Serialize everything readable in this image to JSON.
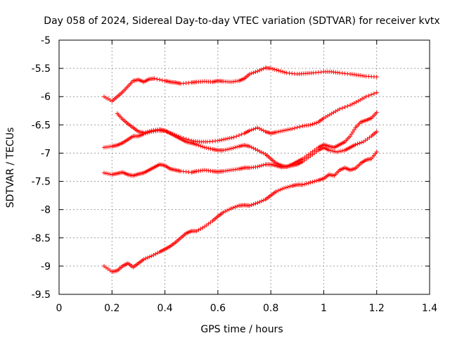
{
  "chart_data": {
    "type": "scatter",
    "title": "Day 058 of 2024, Sidereal Day-to-day VTEC variation (SDTVAR) for receiver kvtx",
    "xlabel": "GPS time / hours",
    "ylabel": "SDTVAR / TECUs",
    "xlim": [
      0,
      1.4
    ],
    "ylim": [
      -9.5,
      -5
    ],
    "xticks": [
      "0",
      "0.2",
      "0.4",
      "0.6",
      "0.8",
      "1",
      "1.2",
      "1.4"
    ],
    "yticks": [
      "-5",
      "-5.5",
      "-6",
      "-6.5",
      "-7",
      "-7.5",
      "-8",
      "-8.5",
      "-9",
      "-9.5"
    ],
    "grid": true,
    "marker": "+",
    "marker_color": "#ff0000",
    "series": [
      {
        "x": [
          0.17,
          0.2,
          0.22,
          0.24,
          0.26,
          0.28,
          0.3,
          0.32,
          0.34,
          0.36,
          0.4,
          0.42,
          0.44,
          0.46,
          0.5,
          0.52,
          0.55,
          0.58,
          0.6,
          0.62,
          0.65,
          0.68,
          0.7,
          0.72,
          0.75,
          0.78,
          0.8,
          0.83,
          0.86,
          0.9,
          0.93,
          0.96,
          1.0,
          1.03,
          1.06,
          1.1,
          1.13,
          1.16,
          1.2
        ],
        "y": [
          -6.0,
          -6.08,
          -6.0,
          -5.92,
          -5.82,
          -5.72,
          -5.7,
          -5.74,
          -5.69,
          -5.68,
          -5.72,
          -5.74,
          -5.75,
          -5.77,
          -5.75,
          -5.74,
          -5.73,
          -5.74,
          -5.72,
          -5.73,
          -5.74,
          -5.72,
          -5.68,
          -5.6,
          -5.55,
          -5.49,
          -5.5,
          -5.54,
          -5.58,
          -5.6,
          -5.59,
          -5.58,
          -5.56,
          -5.56,
          -5.58,
          -5.6,
          -5.62,
          -5.64,
          -5.65
        ]
      },
      {
        "x": [
          0.22,
          0.24,
          0.26,
          0.28,
          0.3,
          0.32,
          0.35,
          0.38,
          0.4,
          0.42,
          0.44,
          0.46,
          0.48,
          0.5,
          0.52,
          0.55,
          0.58,
          0.6,
          0.62,
          0.65,
          0.68,
          0.7,
          0.72,
          0.75,
          0.78,
          0.8,
          0.82,
          0.84,
          0.86,
          0.88,
          0.9,
          0.92,
          0.95,
          0.98,
          1.0,
          1.02,
          1.05,
          1.08,
          1.1,
          1.12,
          1.15,
          1.18,
          1.2
        ],
        "y": [
          -6.3,
          -6.4,
          -6.48,
          -6.55,
          -6.62,
          -6.64,
          -6.6,
          -6.58,
          -6.6,
          -6.65,
          -6.7,
          -6.75,
          -6.8,
          -6.82,
          -6.85,
          -6.9,
          -6.93,
          -6.95,
          -6.95,
          -6.92,
          -6.88,
          -6.86,
          -6.88,
          -6.95,
          -7.02,
          -7.1,
          -7.18,
          -7.22,
          -7.24,
          -7.22,
          -7.2,
          -7.15,
          -7.05,
          -6.95,
          -6.9,
          -6.95,
          -6.98,
          -6.95,
          -6.9,
          -6.85,
          -6.8,
          -6.7,
          -6.62
        ]
      },
      {
        "x": [
          0.17,
          0.2,
          0.22,
          0.24,
          0.26,
          0.28,
          0.3,
          0.32,
          0.35,
          0.38,
          0.4,
          0.43,
          0.46,
          0.5,
          0.53,
          0.56,
          0.6,
          0.63,
          0.66,
          0.7,
          0.72,
          0.75,
          0.78,
          0.8,
          0.82,
          0.85,
          0.88,
          0.92,
          0.95,
          0.98,
          1.0,
          1.03,
          1.06,
          1.1,
          1.13,
          1.16,
          1.2
        ],
        "y": [
          -6.9,
          -6.88,
          -6.86,
          -6.82,
          -6.76,
          -6.7,
          -6.7,
          -6.66,
          -6.62,
          -6.6,
          -6.61,
          -6.66,
          -6.72,
          -6.78,
          -6.8,
          -6.8,
          -6.78,
          -6.75,
          -6.72,
          -6.65,
          -6.6,
          -6.55,
          -6.62,
          -6.65,
          -6.63,
          -6.6,
          -6.57,
          -6.52,
          -6.5,
          -6.45,
          -6.38,
          -6.3,
          -6.22,
          -6.15,
          -6.08,
          -6.0,
          -5.93
        ]
      },
      {
        "x": [
          0.17,
          0.2,
          0.22,
          0.24,
          0.26,
          0.28,
          0.3,
          0.32,
          0.34,
          0.36,
          0.38,
          0.4,
          0.42,
          0.44,
          0.46,
          0.5,
          0.52,
          0.55,
          0.58,
          0.6,
          0.62,
          0.65,
          0.68,
          0.7,
          0.72,
          0.75,
          0.78,
          0.8,
          0.82,
          0.84,
          0.86,
          0.88,
          0.9,
          0.92,
          0.95,
          0.98,
          1.0,
          1.02,
          1.04,
          1.06,
          1.08,
          1.1,
          1.12,
          1.14,
          1.16,
          1.18,
          1.2
        ],
        "y": [
          -7.35,
          -7.38,
          -7.36,
          -7.34,
          -7.38,
          -7.4,
          -7.37,
          -7.35,
          -7.3,
          -7.25,
          -7.2,
          -7.22,
          -7.28,
          -7.3,
          -7.32,
          -7.34,
          -7.32,
          -7.3,
          -7.32,
          -7.33,
          -7.32,
          -7.3,
          -7.28,
          -7.26,
          -7.26,
          -7.24,
          -7.2,
          -7.2,
          -7.22,
          -7.25,
          -7.24,
          -7.2,
          -7.15,
          -7.1,
          -7.0,
          -6.9,
          -6.85,
          -6.88,
          -6.9,
          -6.85,
          -6.8,
          -6.7,
          -6.55,
          -6.45,
          -6.42,
          -6.38,
          -6.28
        ]
      },
      {
        "x": [
          0.17,
          0.2,
          0.22,
          0.24,
          0.26,
          0.28,
          0.3,
          0.32,
          0.35,
          0.38,
          0.4,
          0.42,
          0.44,
          0.46,
          0.48,
          0.5,
          0.52,
          0.55,
          0.58,
          0.6,
          0.62,
          0.65,
          0.68,
          0.7,
          0.72,
          0.75,
          0.78,
          0.8,
          0.82,
          0.85,
          0.88,
          0.9,
          0.92,
          0.95,
          0.98,
          1.0,
          1.02,
          1.04,
          1.06,
          1.08,
          1.1,
          1.12,
          1.14,
          1.16,
          1.18,
          1.2
        ],
        "y": [
          -9.0,
          -9.1,
          -9.08,
          -9.0,
          -8.95,
          -9.02,
          -8.95,
          -8.88,
          -8.82,
          -8.75,
          -8.7,
          -8.65,
          -8.58,
          -8.5,
          -8.42,
          -8.38,
          -8.38,
          -8.3,
          -8.2,
          -8.12,
          -8.05,
          -7.98,
          -7.93,
          -7.92,
          -7.93,
          -7.88,
          -7.82,
          -7.75,
          -7.68,
          -7.62,
          -7.58,
          -7.56,
          -7.56,
          -7.52,
          -7.48,
          -7.45,
          -7.38,
          -7.4,
          -7.3,
          -7.26,
          -7.3,
          -7.27,
          -7.18,
          -7.12,
          -7.1,
          -6.98
        ]
      }
    ]
  }
}
